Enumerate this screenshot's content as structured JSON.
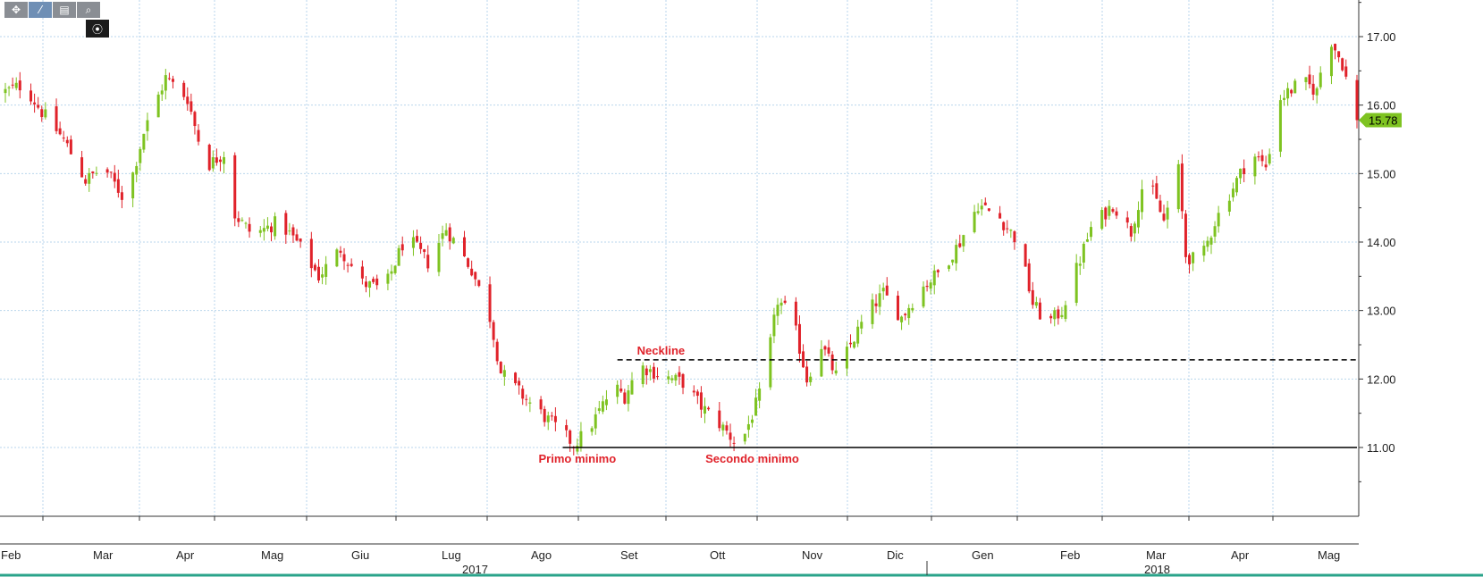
{
  "toolbar": {
    "buttons": [
      {
        "icon": "crosshair-icon",
        "glyph": "✥"
      },
      {
        "icon": "draw-line-icon",
        "glyph": "⁄"
      },
      {
        "icon": "table-icon",
        "glyph": "▤"
      },
      {
        "icon": "zoom-icon",
        "glyph": "⌕"
      }
    ],
    "sub_button": {
      "icon": "settings-icon",
      "glyph": "⦿"
    }
  },
  "chart_data": {
    "type": "candlestick",
    "title": "",
    "ylim": [
      10,
      17.5
    ],
    "y_ticks": [
      "17.00",
      "16.00",
      "15.00",
      "14.00",
      "13.00",
      "12.00",
      "11.00"
    ],
    "x_months": [
      "Feb",
      "Mar",
      "Apr",
      "Mag",
      "Giu",
      "Lug",
      "Ago",
      "Set",
      "Ott",
      "Nov",
      "Dic",
      "Gen",
      "Feb",
      "Mar",
      "Apr",
      "Mag"
    ],
    "years": [
      "2017",
      "2018"
    ],
    "grid": true,
    "last_price": {
      "label": "15.78",
      "value": 15.78,
      "color": "#7ec321"
    },
    "colors": {
      "up": "#7ec321",
      "down": "#e0222a",
      "grid": "#b9d6ec"
    },
    "anchors": [
      [
        0,
        16.2
      ],
      [
        5,
        16.3
      ],
      [
        10,
        15.9
      ],
      [
        16,
        15.5
      ],
      [
        22,
        14.9
      ],
      [
        27,
        15.1
      ],
      [
        33,
        14.6
      ],
      [
        38,
        15.6
      ],
      [
        44,
        16.4
      ],
      [
        50,
        16.1
      ],
      [
        55,
        15.1
      ],
      [
        60,
        15.3
      ],
      [
        63,
        14.4
      ],
      [
        68,
        14.1
      ],
      [
        75,
        14.3
      ],
      [
        80,
        14.0
      ],
      [
        86,
        13.5
      ],
      [
        92,
        13.9
      ],
      [
        98,
        13.4
      ],
      [
        104,
        13.3
      ],
      [
        110,
        14.1
      ],
      [
        116,
        13.7
      ],
      [
        121,
        14.2
      ],
      [
        128,
        13.6
      ],
      [
        133,
        12.9
      ],
      [
        136,
        12.1
      ],
      [
        143,
        11.7
      ],
      [
        150,
        11.35
      ],
      [
        156,
        11.05
      ],
      [
        160,
        11.25
      ],
      [
        167,
        11.9
      ],
      [
        170,
        11.75
      ],
      [
        174,
        12.2
      ],
      [
        180,
        12.05
      ],
      [
        186,
        11.95
      ],
      [
        191,
        11.6
      ],
      [
        196,
        11.35
      ],
      [
        200,
        11.1
      ],
      [
        203,
        11.2
      ],
      [
        208,
        11.9
      ],
      [
        212,
        13.15
      ],
      [
        216,
        12.9
      ],
      [
        220,
        12.0
      ],
      [
        224,
        12.5
      ],
      [
        228,
        12.05
      ],
      [
        232,
        12.5
      ],
      [
        237,
        13.0
      ],
      [
        241,
        13.25
      ],
      [
        246,
        12.9
      ],
      [
        251,
        13.3
      ],
      [
        257,
        13.6
      ],
      [
        262,
        14.0
      ],
      [
        267,
        14.55
      ],
      [
        273,
        14.35
      ],
      [
        278,
        14.0
      ],
      [
        282,
        13.1
      ],
      [
        286,
        12.8
      ],
      [
        290,
        13.0
      ],
      [
        294,
        13.6
      ],
      [
        298,
        14.2
      ],
      [
        304,
        14.55
      ],
      [
        309,
        14.15
      ],
      [
        313,
        15.0
      ],
      [
        318,
        14.3
      ],
      [
        322,
        15.05
      ],
      [
        324,
        13.8
      ],
      [
        328,
        13.7
      ],
      [
        332,
        14.3
      ],
      [
        337,
        14.8
      ],
      [
        342,
        15.3
      ],
      [
        346,
        15.1
      ],
      [
        350,
        16.1
      ],
      [
        356,
        16.35
      ],
      [
        360,
        16.2
      ],
      [
        363,
        17.05
      ],
      [
        367,
        16.6
      ],
      [
        371,
        15.78
      ]
    ],
    "annotations": [
      {
        "label": "Neckline",
        "value": 12.28,
        "style": "dashed",
        "from_day": 168,
        "to_day": 371
      },
      {
        "label": "",
        "value": 11.0,
        "style": "solid",
        "from_day": 153,
        "to_day": 371
      },
      {
        "label": "Primo minimo",
        "day": 157,
        "value": 11.0,
        "position": "below"
      },
      {
        "label": "Secondo minimo",
        "day": 205,
        "value": 11.0,
        "position": "below"
      }
    ]
  }
}
